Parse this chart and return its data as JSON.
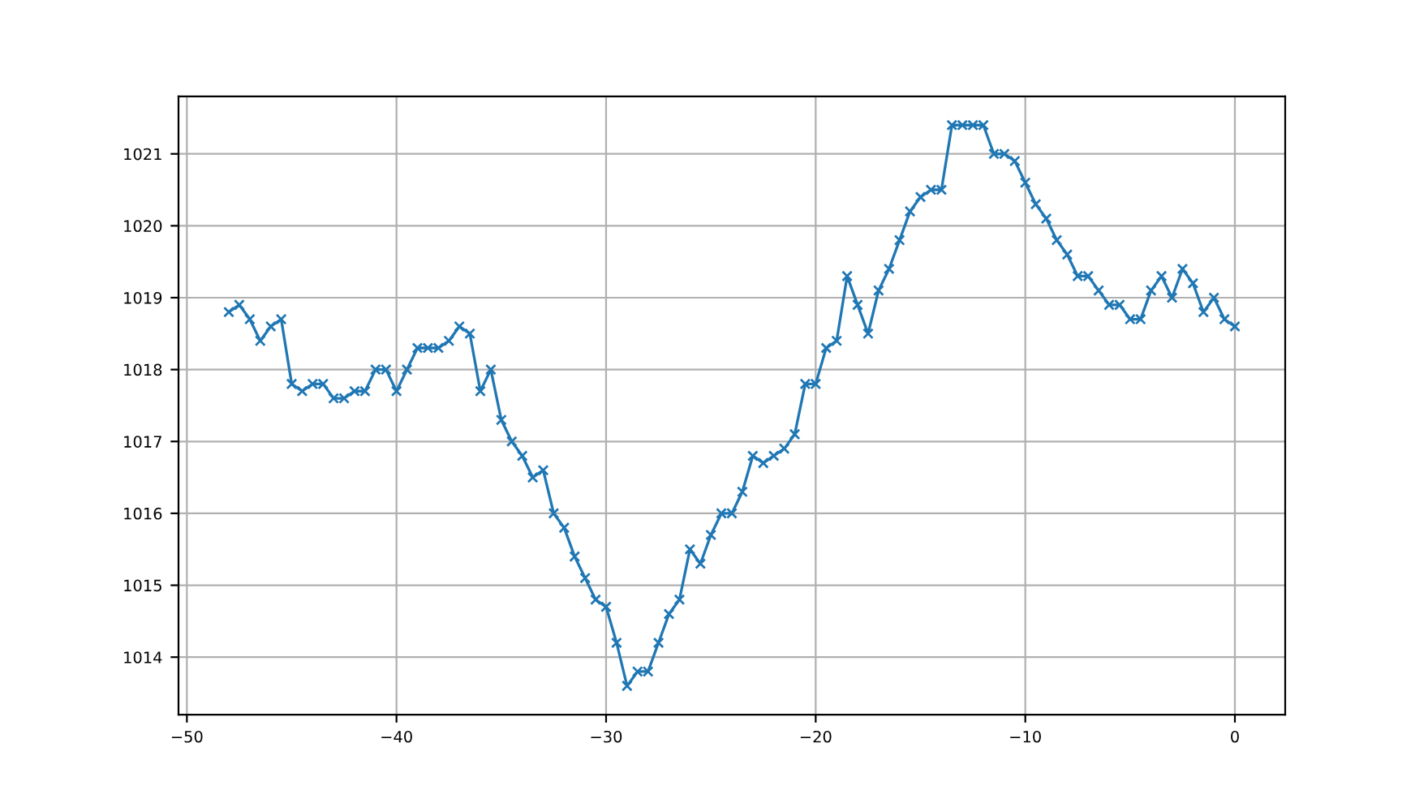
{
  "chart_data": {
    "type": "line",
    "x": [
      -48,
      -47.5,
      -47,
      -46.5,
      -46,
      -45.5,
      -45,
      -44.5,
      -44,
      -43.5,
      -43,
      -42.5,
      -42,
      -41.5,
      -41,
      -40.5,
      -40,
      -39.5,
      -39,
      -38.5,
      -38,
      -37.5,
      -37,
      -36.5,
      -36,
      -35.5,
      -35,
      -34.5,
      -34,
      -33.5,
      -33,
      -32.5,
      -32,
      -31.5,
      -31,
      -30.5,
      -30,
      -29.5,
      -29,
      -28.5,
      -28,
      -27.5,
      -27,
      -26.5,
      -26,
      -25.5,
      -25,
      -24.5,
      -24,
      -23.5,
      -23,
      -22.5,
      -22,
      -21.5,
      -21,
      -20.5,
      -20,
      -19.5,
      -19,
      -18.5,
      -18,
      -17.5,
      -17,
      -16.5,
      -16,
      -15.5,
      -15,
      -14.5,
      -14,
      -13.5,
      -13,
      -12.5,
      -12,
      -11.5,
      -11,
      -10.5,
      -10,
      -9.5,
      -9,
      -8.5,
      -8,
      -7.5,
      -7,
      -6.5,
      -6,
      -5.5,
      -5,
      -4.5,
      -4,
      -3.5,
      -3,
      -2.5,
      -2,
      -1.5,
      -1,
      -0.5,
      0
    ],
    "series": [
      {
        "color": "#1f77b4",
        "values": [
          1018.8,
          1018.9,
          1018.7,
          1018.4,
          1018.6,
          1018.7,
          1017.8,
          1017.7,
          1017.8,
          1017.8,
          1017.6,
          1017.6,
          1017.7,
          1017.7,
          1018.0,
          1018.0,
          1017.7,
          1018.0,
          1018.3,
          1018.3,
          1018.3,
          1018.4,
          1018.6,
          1018.5,
          1017.7,
          1018.0,
          1017.3,
          1017.0,
          1016.8,
          1016.5,
          1016.6,
          1016.0,
          1015.8,
          1015.4,
          1015.1,
          1014.8,
          1014.7,
          1014.2,
          1013.6,
          1013.8,
          1013.8,
          1014.2,
          1014.6,
          1014.8,
          1015.5,
          1015.3,
          1015.7,
          1016.0,
          1016.0,
          1016.3,
          1016.8,
          1016.7,
          1016.8,
          1016.9,
          1017.1,
          1017.8,
          1017.8,
          1018.3,
          1018.4,
          1019.3,
          1018.9,
          1018.5,
          1019.1,
          1019.4,
          1019.8,
          1020.2,
          1020.4,
          1020.5,
          1020.5,
          1021.4,
          1021.4,
          1021.4,
          1021.4,
          1021.0,
          1021.0,
          1020.9,
          1020.6,
          1020.3,
          1020.1,
          1019.8,
          1019.6,
          1019.3,
          1019.3,
          1019.1,
          1018.9,
          1018.9,
          1018.7,
          1018.7,
          1019.1,
          1019.3,
          1019.0,
          1019.4,
          1019.2,
          1018.8,
          1019.0,
          1018.7,
          1018.6
        ]
      }
    ],
    "xlim": [
      -50.4,
      2.4
    ],
    "ylim": [
      1013.2,
      1021.8
    ],
    "xticks": [
      {
        "value": -50,
        "label": "−50"
      },
      {
        "value": -40,
        "label": "−40"
      },
      {
        "value": -30,
        "label": "−30"
      },
      {
        "value": -20,
        "label": "−20"
      },
      {
        "value": -10,
        "label": "−10"
      },
      0
    ],
    "yticks": [
      1014,
      1015,
      1016,
      1017,
      1018,
      1019,
      1020,
      1021
    ],
    "grid": true,
    "marker": "cross",
    "line_style": "solid"
  }
}
